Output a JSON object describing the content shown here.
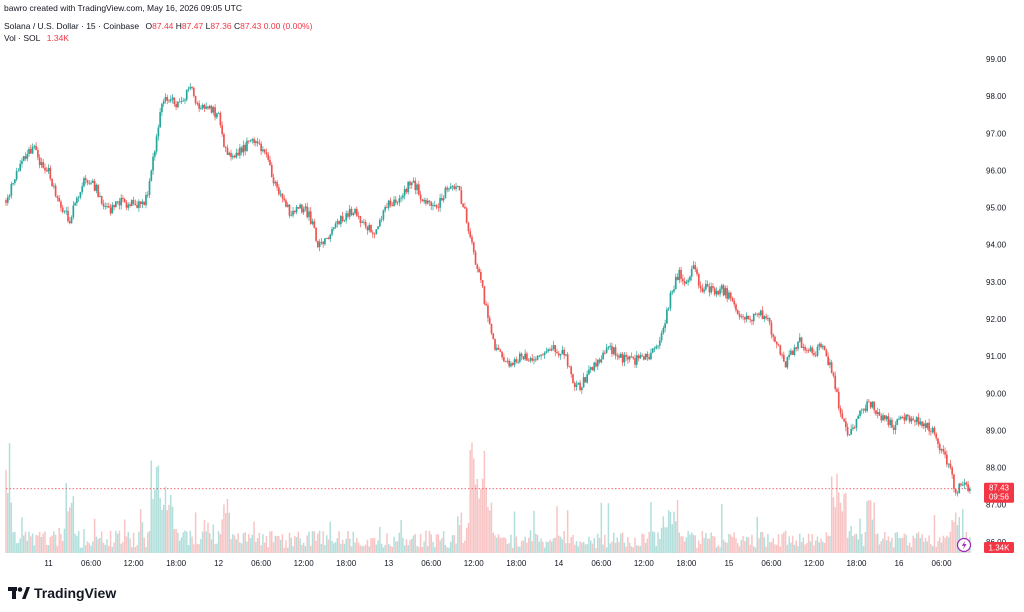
{
  "header": {
    "created_by": "bawro created with TradingView.com, May 16, 2026 09:05 UTC"
  },
  "symbol": {
    "name": "Solana / U.S. Dollar · 15 · Coinbase",
    "open_label": "O",
    "open": "87.44",
    "high_label": "H",
    "high": "87.47",
    "low_label": "L",
    "low": "87.36",
    "close_label": "C",
    "close": "87.43",
    "change": "0.00 (0.00%)"
  },
  "volume": {
    "label": "Vol · SOL",
    "value": "1.34K"
  },
  "price_badge": {
    "price": "87.43",
    "countdown": "09:56"
  },
  "volume_badge": "1.34K",
  "footer": {
    "logo_text": "TradingView"
  },
  "colors": {
    "up": "#26a69a",
    "down": "#ef5350",
    "up_volume": "#b2dfdb",
    "down_volume": "#f8c4c4",
    "badge": "#f23645"
  },
  "chart_data": {
    "type": "candlestick",
    "y_ticks": [
      "99.00",
      "98.00",
      "97.00",
      "96.00",
      "95.00",
      "94.00",
      "93.00",
      "92.00",
      "91.00",
      "90.00",
      "89.00",
      "88.00",
      "87.00",
      "86.00"
    ],
    "ylim": [
      85.7,
      99.35
    ],
    "x_ticks": [
      "11",
      "06:00",
      "12:00",
      "18:00",
      "12",
      "06:00",
      "12:00",
      "18:00",
      "13",
      "06:00",
      "12:00",
      "18:00",
      "14",
      "06:00",
      "12:00",
      "18:00",
      "15",
      "06:00",
      "12:00",
      "18:00",
      "16",
      "06:00"
    ],
    "x_tick_hours": [
      0,
      6,
      12,
      18,
      24,
      30,
      36,
      42,
      48,
      54,
      60,
      66,
      72,
      78,
      84,
      90,
      96,
      102,
      108,
      114,
      120,
      126
    ],
    "x_range_hours": [
      -6,
      130.3
    ],
    "interval": "15",
    "close_series": [
      {
        "t": -6,
        "p": 95.2
      },
      {
        "t": -5,
        "p": 95.7
      },
      {
        "t": -4,
        "p": 96.2
      },
      {
        "t": -3,
        "p": 96.4
      },
      {
        "t": -2,
        "p": 96.6
      },
      {
        "t": -1,
        "p": 96.1
      },
      {
        "t": 0,
        "p": 96.0
      },
      {
        "t": 1,
        "p": 95.4
      },
      {
        "t": 2,
        "p": 94.9
      },
      {
        "t": 3,
        "p": 94.7
      },
      {
        "t": 4,
        "p": 95.2
      },
      {
        "t": 5,
        "p": 95.7
      },
      {
        "t": 6,
        "p": 95.7
      },
      {
        "t": 7,
        "p": 95.4
      },
      {
        "t": 8,
        "p": 94.9
      },
      {
        "t": 9,
        "p": 95.0
      },
      {
        "t": 10,
        "p": 95.2
      },
      {
        "t": 11,
        "p": 95.1
      },
      {
        "t": 12,
        "p": 95.1
      },
      {
        "t": 13,
        "p": 95.0
      },
      {
        "t": 14,
        "p": 95.3
      },
      {
        "t": 15,
        "p": 96.6
      },
      {
        "t": 16,
        "p": 97.8
      },
      {
        "t": 17,
        "p": 98.0
      },
      {
        "t": 18,
        "p": 97.7
      },
      {
        "t": 19,
        "p": 97.9
      },
      {
        "t": 20,
        "p": 98.2
      },
      {
        "t": 21,
        "p": 97.8
      },
      {
        "t": 22,
        "p": 97.8
      },
      {
        "t": 23,
        "p": 97.6
      },
      {
        "t": 24,
        "p": 97.5
      },
      {
        "t": 25,
        "p": 96.5
      },
      {
        "t": 26,
        "p": 96.3
      },
      {
        "t": 27,
        "p": 96.5
      },
      {
        "t": 28,
        "p": 96.7
      },
      {
        "t": 29,
        "p": 96.8
      },
      {
        "t": 30,
        "p": 96.6
      },
      {
        "t": 31,
        "p": 96.2
      },
      {
        "t": 32,
        "p": 95.6
      },
      {
        "t": 33,
        "p": 95.2
      },
      {
        "t": 34,
        "p": 94.9
      },
      {
        "t": 35,
        "p": 95.0
      },
      {
        "t": 36,
        "p": 95.0
      },
      {
        "t": 37,
        "p": 94.7
      },
      {
        "t": 38,
        "p": 94.0
      },
      {
        "t": 39,
        "p": 94.1
      },
      {
        "t": 40,
        "p": 94.3
      },
      {
        "t": 41,
        "p": 94.6
      },
      {
        "t": 42,
        "p": 94.8
      },
      {
        "t": 43,
        "p": 94.9
      },
      {
        "t": 44,
        "p": 94.6
      },
      {
        "t": 45,
        "p": 94.5
      },
      {
        "t": 46,
        "p": 94.3
      },
      {
        "t": 47,
        "p": 94.7
      },
      {
        "t": 48,
        "p": 95.1
      },
      {
        "t": 49,
        "p": 95.2
      },
      {
        "t": 50,
        "p": 95.4
      },
      {
        "t": 51,
        "p": 95.7
      },
      {
        "t": 52,
        "p": 95.5
      },
      {
        "t": 53,
        "p": 95.2
      },
      {
        "t": 54,
        "p": 95.1
      },
      {
        "t": 55,
        "p": 95.1
      },
      {
        "t": 56,
        "p": 95.4
      },
      {
        "t": 57,
        "p": 95.6
      },
      {
        "t": 58,
        "p": 95.4
      },
      {
        "t": 59,
        "p": 94.7
      },
      {
        "t": 60,
        "p": 93.8
      },
      {
        "t": 61,
        "p": 93.0
      },
      {
        "t": 62,
        "p": 92.0
      },
      {
        "t": 63,
        "p": 91.3
      },
      {
        "t": 64,
        "p": 90.9
      },
      {
        "t": 65,
        "p": 90.8
      },
      {
        "t": 66,
        "p": 90.9
      },
      {
        "t": 67,
        "p": 91.0
      },
      {
        "t": 68,
        "p": 90.9
      },
      {
        "t": 69,
        "p": 91.0
      },
      {
        "t": 70,
        "p": 91.1
      },
      {
        "t": 71,
        "p": 91.2
      },
      {
        "t": 72,
        "p": 91.1
      },
      {
        "t": 73,
        "p": 91.0
      },
      {
        "t": 74,
        "p": 90.3
      },
      {
        "t": 75,
        "p": 90.1
      },
      {
        "t": 76,
        "p": 90.5
      },
      {
        "t": 77,
        "p": 90.8
      },
      {
        "t": 78,
        "p": 91.0
      },
      {
        "t": 79,
        "p": 91.2
      },
      {
        "t": 80,
        "p": 91.1
      },
      {
        "t": 81,
        "p": 90.9
      },
      {
        "t": 82,
        "p": 90.9
      },
      {
        "t": 83,
        "p": 90.9
      },
      {
        "t": 84,
        "p": 91.0
      },
      {
        "t": 85,
        "p": 91.0
      },
      {
        "t": 86,
        "p": 91.3
      },
      {
        "t": 87,
        "p": 92.0
      },
      {
        "t": 88,
        "p": 92.8
      },
      {
        "t": 89,
        "p": 93.2
      },
      {
        "t": 90,
        "p": 93.0
      },
      {
        "t": 91,
        "p": 93.4
      },
      {
        "t": 92,
        "p": 92.9
      },
      {
        "t": 93,
        "p": 92.8
      },
      {
        "t": 94,
        "p": 92.8
      },
      {
        "t": 95,
        "p": 92.8
      },
      {
        "t": 96,
        "p": 92.6
      },
      {
        "t": 97,
        "p": 92.3
      },
      {
        "t": 98,
        "p": 92.0
      },
      {
        "t": 99,
        "p": 91.9
      },
      {
        "t": 100,
        "p": 92.2
      },
      {
        "t": 101,
        "p": 92.1
      },
      {
        "t": 102,
        "p": 91.7
      },
      {
        "t": 103,
        "p": 91.3
      },
      {
        "t": 104,
        "p": 90.8
      },
      {
        "t": 105,
        "p": 91.1
      },
      {
        "t": 106,
        "p": 91.4
      },
      {
        "t": 107,
        "p": 91.2
      },
      {
        "t": 108,
        "p": 91.0
      },
      {
        "t": 109,
        "p": 91.3
      },
      {
        "t": 110,
        "p": 90.9
      },
      {
        "t": 111,
        "p": 90.2
      },
      {
        "t": 112,
        "p": 89.2
      },
      {
        "t": 113,
        "p": 88.9
      },
      {
        "t": 114,
        "p": 89.2
      },
      {
        "t": 115,
        "p": 89.6
      },
      {
        "t": 116,
        "p": 89.7
      },
      {
        "t": 117,
        "p": 89.5
      },
      {
        "t": 118,
        "p": 89.3
      },
      {
        "t": 119,
        "p": 89.1
      },
      {
        "t": 120,
        "p": 89.2
      },
      {
        "t": 121,
        "p": 89.3
      },
      {
        "t": 122,
        "p": 89.2
      },
      {
        "t": 123,
        "p": 89.3
      },
      {
        "t": 124,
        "p": 89.1
      },
      {
        "t": 125,
        "p": 88.9
      },
      {
        "t": 126,
        "p": 88.5
      },
      {
        "t": 127,
        "p": 88.1
      },
      {
        "t": 128,
        "p": 87.3
      },
      {
        "t": 129,
        "p": 87.6
      },
      {
        "t": 130,
        "p": 87.43
      }
    ],
    "volume_peaks": [
      {
        "t": -6,
        "v": 0.85
      },
      {
        "t": 3,
        "v": 0.6
      },
      {
        "t": 15,
        "v": 0.75
      },
      {
        "t": 16,
        "v": 0.55
      },
      {
        "t": 17,
        "v": 0.6
      },
      {
        "t": 25,
        "v": 0.45
      },
      {
        "t": 60,
        "v": 0.95
      },
      {
        "t": 61,
        "v": 0.65
      },
      {
        "t": 62,
        "v": 0.55
      },
      {
        "t": 87,
        "v": 0.3
      },
      {
        "t": 88,
        "v": 0.35
      },
      {
        "t": 111,
        "v": 0.65
      },
      {
        "t": 112,
        "v": 0.55
      },
      {
        "t": 116,
        "v": 0.45
      },
      {
        "t": 128,
        "v": 0.4
      }
    ],
    "last_price": 87.43,
    "last_price_line": "dotted",
    "grid": false
  }
}
